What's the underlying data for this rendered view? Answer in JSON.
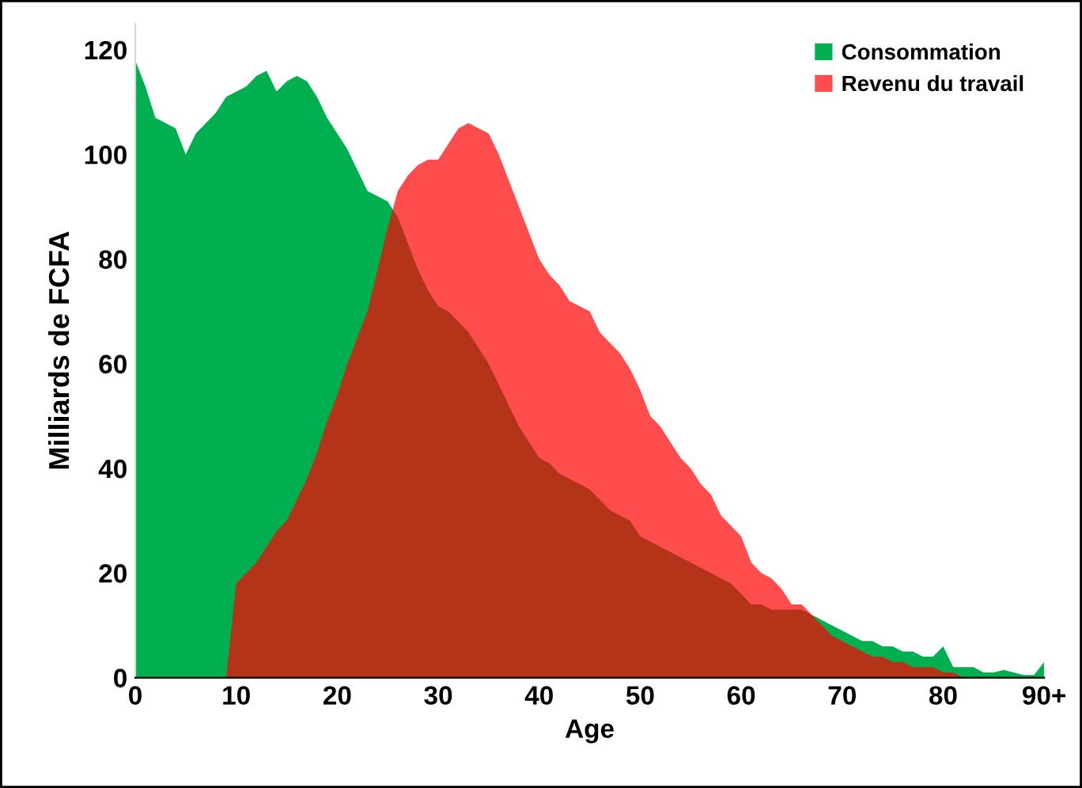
{
  "chart_data": {
    "type": "area",
    "xlabel": "Age",
    "ylabel": "Milliards de FCFA",
    "x": [
      0,
      1,
      2,
      3,
      4,
      5,
      6,
      7,
      8,
      9,
      10,
      11,
      12,
      13,
      14,
      15,
      16,
      17,
      18,
      19,
      20,
      21,
      22,
      23,
      24,
      25,
      26,
      27,
      28,
      29,
      30,
      31,
      32,
      33,
      34,
      35,
      36,
      37,
      38,
      39,
      40,
      41,
      42,
      43,
      44,
      45,
      46,
      47,
      48,
      49,
      50,
      51,
      52,
      53,
      54,
      55,
      56,
      57,
      58,
      59,
      60,
      61,
      62,
      63,
      64,
      65,
      66,
      67,
      68,
      69,
      70,
      71,
      72,
      73,
      74,
      75,
      76,
      77,
      78,
      79,
      80,
      81,
      82,
      83,
      84,
      85,
      86,
      87,
      88,
      89,
      90
    ],
    "series": [
      {
        "name": "Consommation",
        "color": "#00b050",
        "values": [
          118,
          113,
          107,
          106,
          105,
          100,
          104,
          106,
          108,
          111,
          112,
          113,
          115,
          116,
          112,
          114,
          115,
          114,
          111,
          107,
          104,
          101,
          97,
          93,
          92,
          91,
          88,
          83,
          78,
          74,
          71,
          70,
          68,
          66,
          63,
          60,
          56,
          52,
          48,
          45,
          42,
          41,
          39,
          38,
          37,
          36,
          34,
          32,
          31,
          30,
          27,
          26,
          25,
          24,
          23,
          22,
          21,
          20,
          19,
          18,
          16,
          14,
          14,
          13,
          13,
          13,
          13,
          12,
          11,
          10,
          9,
          8,
          7,
          7,
          6,
          6,
          5,
          5,
          4,
          4,
          6,
          2,
          2,
          2,
          1,
          1,
          1.5,
          1,
          0.5,
          0.5,
          3
        ]
      },
      {
        "name": "Revenu du travail",
        "color": "#ff0000",
        "values": [
          0,
          0,
          0,
          0,
          0,
          0,
          0,
          0,
          0,
          0,
          18,
          20,
          22,
          25,
          28,
          30,
          34,
          38,
          43,
          49,
          54,
          60,
          65,
          70,
          78,
          86,
          93,
          96,
          98,
          99,
          99,
          102,
          105,
          106,
          105,
          104,
          100,
          95,
          90,
          85,
          80,
          77,
          75,
          72,
          71,
          70,
          66,
          64,
          62,
          59,
          55,
          50,
          48,
          45,
          42,
          40,
          37,
          35,
          31,
          29,
          27,
          22,
          20,
          19,
          17,
          14,
          14,
          12,
          10,
          8,
          7,
          6,
          5,
          4,
          4,
          3,
          3,
          2,
          2,
          2,
          1,
          1,
          0,
          0,
          0,
          0,
          0,
          0,
          0,
          0,
          0
        ]
      }
    ],
    "xlim": [
      0,
      90
    ],
    "xticks": [
      0,
      10,
      20,
      30,
      40,
      50,
      60,
      70,
      80,
      {
        "value": 90,
        "label": "90+"
      }
    ],
    "ylim": [
      0,
      125
    ],
    "yticks": [
      0,
      20,
      40,
      60,
      80,
      100,
      120
    ],
    "legend": "top right",
    "grid": false
  }
}
